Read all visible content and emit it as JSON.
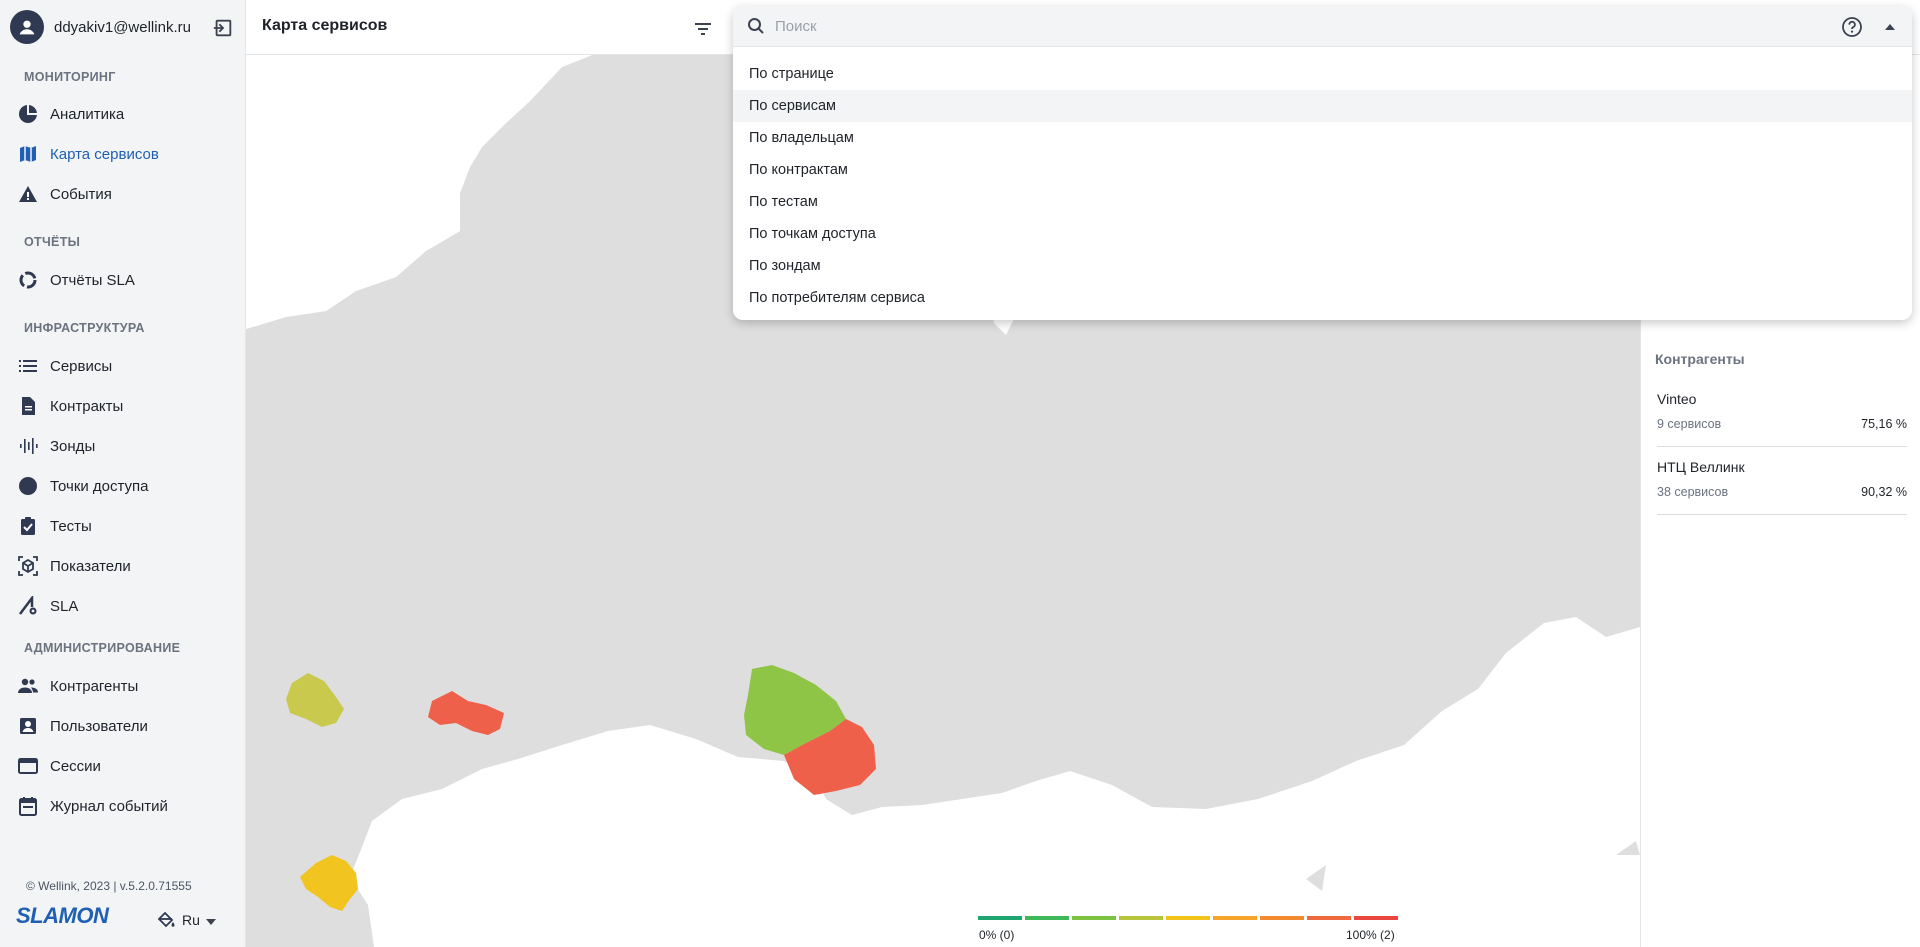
{
  "user": {
    "email": "ddyakiv1@wellink.ru"
  },
  "sidebar": {
    "sections": [
      {
        "title": "МОНИТОРИНГ",
        "items": [
          {
            "label": "Аналитика",
            "icon": "pie-chart-icon"
          },
          {
            "label": "Карта сервисов",
            "icon": "map-icon",
            "active": true
          },
          {
            "label": "События",
            "icon": "warning-icon"
          }
        ]
      },
      {
        "title": "ОТЧЁТЫ",
        "items": [
          {
            "label": "Отчёты SLA",
            "icon": "donut-icon"
          }
        ]
      },
      {
        "title": "ИНФРАСТРУКТУРА",
        "items": [
          {
            "label": "Сервисы",
            "icon": "list-icon"
          },
          {
            "label": "Контракты",
            "icon": "document-icon"
          },
          {
            "label": "Зонды",
            "icon": "waveform-icon"
          },
          {
            "label": "Точки доступа",
            "icon": "circle-icon"
          },
          {
            "label": "Тесты",
            "icon": "clipboard-check-icon"
          },
          {
            "label": "Показатели",
            "icon": "cube-scan-icon"
          },
          {
            "label": "SLA",
            "icon": "sla-gear-icon"
          }
        ]
      },
      {
        "title": "АДМИНИСТРИРОВАНИЕ",
        "items": [
          {
            "label": "Контрагенты",
            "icon": "people-icon"
          },
          {
            "label": "Пользователи",
            "icon": "user-card-icon"
          },
          {
            "label": "Сессии",
            "icon": "browser-window-icon"
          },
          {
            "label": "Журнал событий",
            "icon": "calendar-icon"
          }
        ]
      }
    ],
    "footer": {
      "copyright": "© Wellink, 2023 | v.5.2.0.71555",
      "brand": "SLAMON",
      "language": "Ru"
    }
  },
  "header": {
    "title": "Карта сервисов"
  },
  "search": {
    "placeholder": "Поиск",
    "options": [
      "По странице",
      "По сервисам",
      "По владельцам",
      "По контрактам",
      "По тестам",
      "По точкам доступа",
      "По зондам",
      "По потребителям сервиса"
    ],
    "highlighted_index": 1
  },
  "panel": {
    "title": "Контрагенты",
    "items": [
      {
        "name": "Vinteo",
        "count": "9 сервисов",
        "percent": "75,16 %"
      },
      {
        "name": "НТЦ Веллинк",
        "count": "38 сервисов",
        "percent": "90,32 %"
      }
    ]
  },
  "legend": {
    "min_label": "0% (0)",
    "max_label": "100% (2)",
    "colors": [
      "#1fa56f",
      "#3fb85a",
      "#7cc242",
      "#b8c43a",
      "#f2c31a",
      "#f6a52a",
      "#f28a30",
      "#ee6a3e",
      "#e8463f"
    ]
  },
  "map": {
    "base_color": "#dedede",
    "regions": [
      {
        "name": "region-west-yellowgreen",
        "color": "#c9c94d"
      },
      {
        "name": "region-west-red",
        "color": "#ee6049"
      },
      {
        "name": "region-south-yellow",
        "color": "#f2c420"
      },
      {
        "name": "region-siberia-green",
        "color": "#8fc546"
      },
      {
        "name": "region-siberia-red",
        "color": "#ee6049"
      }
    ]
  }
}
